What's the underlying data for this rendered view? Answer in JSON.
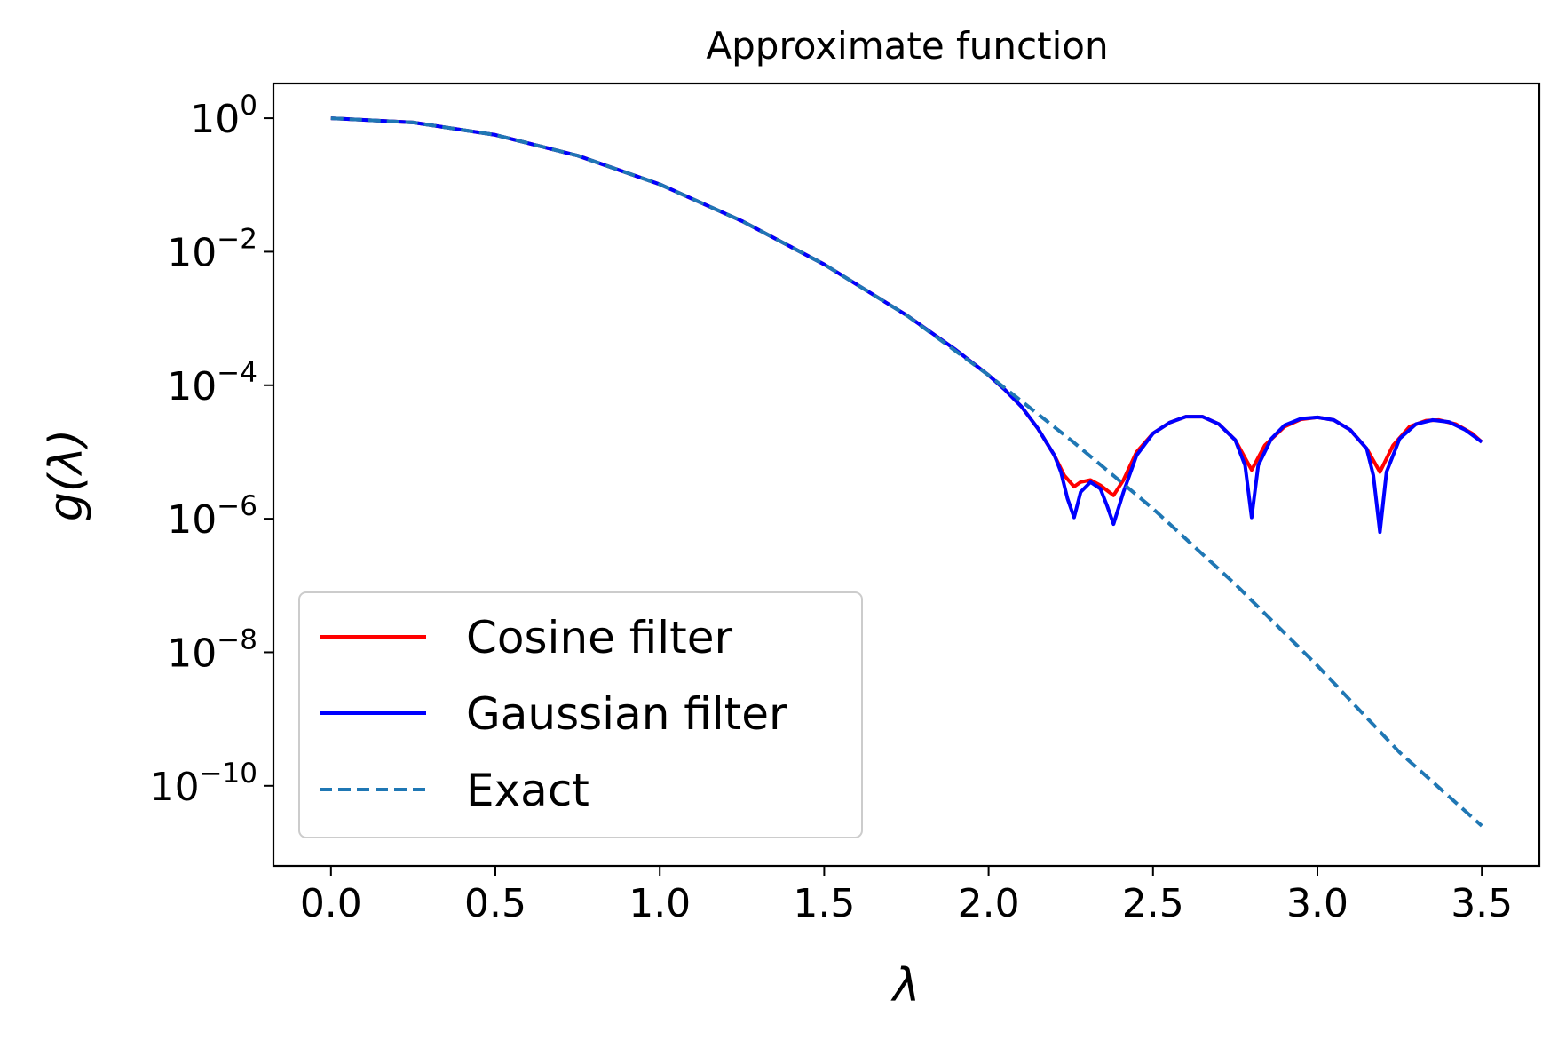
{
  "chart_data": {
    "type": "line",
    "title": "Approximate function",
    "xlabel": "λ",
    "ylabel": "g(λ)",
    "xlim": [
      -0.175,
      3.675
    ],
    "ylim_log10": [
      -11.2,
      0.52
    ],
    "yscale": "log",
    "grid": false,
    "legend_position": "lower left",
    "xticks": [
      0.0,
      0.5,
      1.0,
      1.5,
      2.0,
      2.5,
      3.0,
      3.5
    ],
    "xtick_labels": [
      "0.0",
      "0.5",
      "1.0",
      "1.5",
      "2.0",
      "2.5",
      "3.0",
      "3.5"
    ],
    "yticks_exponent": [
      0,
      -2,
      -4,
      -6,
      -8,
      -10
    ],
    "ytick_labels": [
      {
        "base": "10",
        "exp": "0"
      },
      {
        "base": "10",
        "exp": "−2"
      },
      {
        "base": "10",
        "exp": "−4"
      },
      {
        "base": "10",
        "exp": "−6"
      },
      {
        "base": "10",
        "exp": "−8"
      },
      {
        "base": "10",
        "exp": "−10"
      }
    ],
    "series": [
      {
        "name": "Cosine filter",
        "color": "#ff0000",
        "style": "solid",
        "x": [
          0.0,
          0.25,
          0.5,
          0.75,
          1.0,
          1.25,
          1.5,
          1.75,
          1.9,
          2.0,
          2.05,
          2.1,
          2.15,
          2.2,
          2.23,
          2.26,
          2.28,
          2.31,
          2.34,
          2.38,
          2.41,
          2.45,
          2.5,
          2.55,
          2.6,
          2.65,
          2.7,
          2.75,
          2.8,
          2.84,
          2.9,
          2.95,
          3.0,
          3.05,
          3.1,
          3.15,
          3.19,
          3.23,
          3.28,
          3.33,
          3.37,
          3.42,
          3.47,
          3.5
        ],
        "log10_y": [
          0.0,
          -0.064,
          -0.25,
          -0.56,
          -0.99,
          -1.54,
          -2.19,
          -2.95,
          -3.47,
          -3.85,
          -4.07,
          -4.32,
          -4.65,
          -5.05,
          -5.35,
          -5.52,
          -5.45,
          -5.42,
          -5.5,
          -5.65,
          -5.42,
          -5.0,
          -4.72,
          -4.56,
          -4.47,
          -4.47,
          -4.58,
          -4.82,
          -5.27,
          -4.9,
          -4.62,
          -4.51,
          -4.48,
          -4.52,
          -4.67,
          -4.95,
          -5.3,
          -4.9,
          -4.62,
          -4.53,
          -4.52,
          -4.58,
          -4.72,
          -4.85
        ]
      },
      {
        "name": "Gaussian filter",
        "color": "#0000ff",
        "style": "solid",
        "x": [
          0.0,
          0.25,
          0.5,
          0.75,
          1.0,
          1.25,
          1.5,
          1.75,
          1.9,
          2.0,
          2.05,
          2.1,
          2.15,
          2.2,
          2.22,
          2.24,
          2.26,
          2.28,
          2.31,
          2.34,
          2.36,
          2.38,
          2.41,
          2.45,
          2.5,
          2.55,
          2.6,
          2.65,
          2.7,
          2.75,
          2.78,
          2.8,
          2.82,
          2.86,
          2.9,
          2.95,
          3.0,
          3.05,
          3.1,
          3.15,
          3.17,
          3.19,
          3.21,
          3.25,
          3.3,
          3.35,
          3.4,
          3.45,
          3.5
        ],
        "log10_y": [
          0.0,
          -0.064,
          -0.25,
          -0.56,
          -0.99,
          -1.54,
          -2.19,
          -2.95,
          -3.47,
          -3.85,
          -4.07,
          -4.32,
          -4.65,
          -5.05,
          -5.3,
          -5.7,
          -5.98,
          -5.6,
          -5.45,
          -5.55,
          -5.8,
          -6.08,
          -5.6,
          -5.05,
          -4.72,
          -4.56,
          -4.47,
          -4.47,
          -4.58,
          -4.82,
          -5.2,
          -5.98,
          -5.2,
          -4.8,
          -4.6,
          -4.5,
          -4.48,
          -4.52,
          -4.67,
          -4.95,
          -5.35,
          -6.2,
          -5.3,
          -4.8,
          -4.58,
          -4.52,
          -4.55,
          -4.67,
          -4.85
        ]
      },
      {
        "name": "Exact",
        "color": "#1f77b4",
        "style": "dashed",
        "x": [
          0.0,
          0.25,
          0.5,
          0.75,
          1.0,
          1.25,
          1.5,
          1.75,
          2.0,
          2.25,
          2.5,
          2.75,
          3.0,
          3.25,
          3.5
        ],
        "log10_y": [
          0.0,
          -0.064,
          -0.25,
          -0.56,
          -0.99,
          -1.54,
          -2.19,
          -2.95,
          -3.85,
          -4.82,
          -5.85,
          -6.98,
          -8.2,
          -9.5,
          -10.6
        ]
      }
    ]
  }
}
